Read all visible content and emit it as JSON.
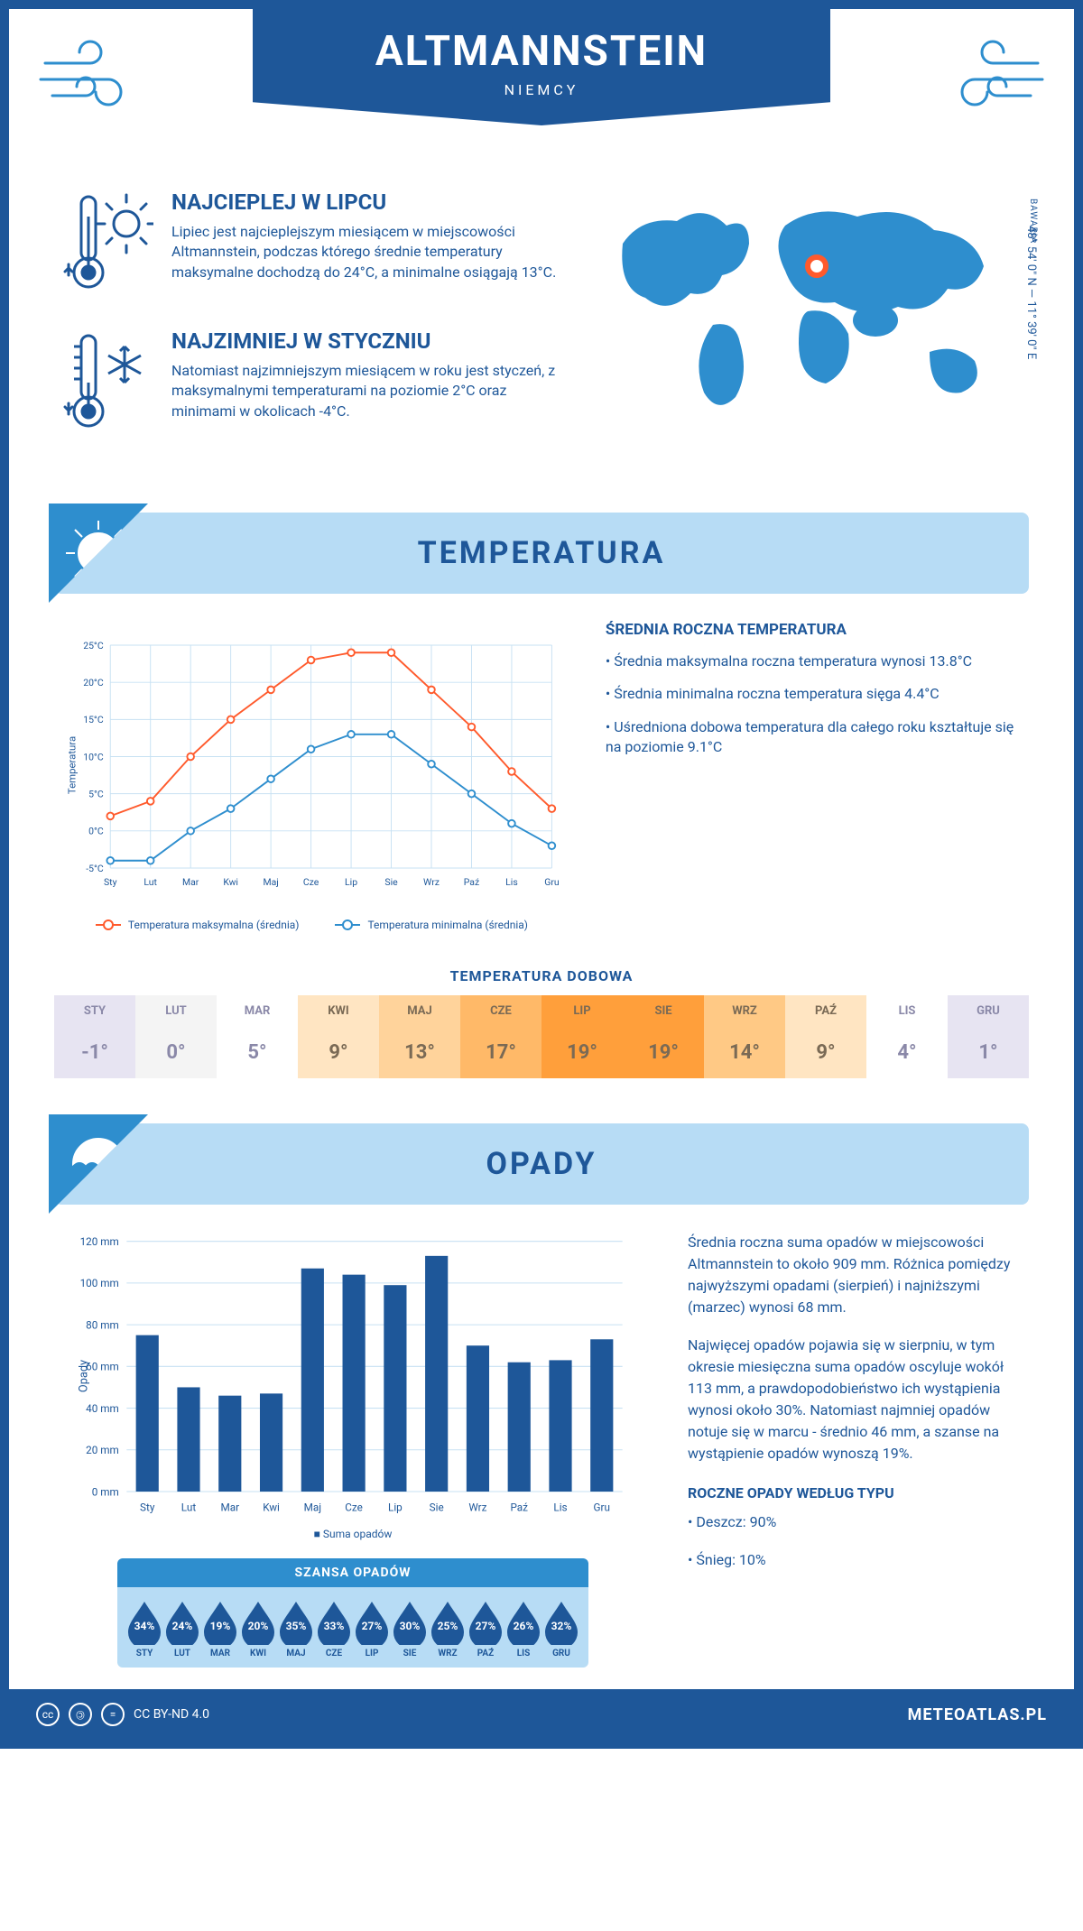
{
  "header": {
    "title": "ALTMANNSTEIN",
    "country": "NIEMCY"
  },
  "location": {
    "region": "BAWARIA",
    "coords": "48° 54' 0\" N — 11° 39' 0\" E",
    "marker_color": "#ff5a2c",
    "map_color": "#2e8ece"
  },
  "intro": {
    "hot": {
      "title": "NAJCIEPLEJ W LIPCU",
      "text": "Lipiec jest najcieplejszym miesiącem w miejscowości Altmannstein, podczas którego średnie temperatury maksymalne dochodzą do 24°C, a minimalne osiągają 13°C."
    },
    "cold": {
      "title": "NAJZIMNIEJ W STYCZNIU",
      "text": "Natomiast najzimniejszym miesiącem w roku jest styczeń, z maksymalnymi temperaturami na poziomie 2°C oraz minimami w okolicach -4°C."
    }
  },
  "colors": {
    "primary": "#1e5799",
    "light": "#b7dcf5",
    "accent_blue": "#2e8ece",
    "accent_orange": "#ff5a2c",
    "grid": "#c7e1f3"
  },
  "months_short": [
    "Sty",
    "Lut",
    "Mar",
    "Kwi",
    "Maj",
    "Cze",
    "Lip",
    "Sie",
    "Wrz",
    "Paź",
    "Lis",
    "Gru"
  ],
  "months_upper": [
    "STY",
    "LUT",
    "MAR",
    "KWI",
    "MAJ",
    "CZE",
    "LIP",
    "SIE",
    "WRZ",
    "PAŹ",
    "LIS",
    "GRU"
  ],
  "temperature": {
    "section_title": "TEMPERATURA",
    "y_label": "Temperatura",
    "ylim": [
      -5,
      25
    ],
    "ytick_step": 5,
    "y_tick_labels": [
      "-5°C",
      "0°C",
      "5°C",
      "10°C",
      "15°C",
      "20°C",
      "25°C"
    ],
    "max_series": [
      2,
      4,
      10,
      15,
      19,
      23,
      24,
      24,
      19,
      14,
      8,
      3
    ],
    "min_series": [
      -4,
      -4,
      0,
      3,
      7,
      11,
      13,
      13,
      9,
      5,
      1,
      -2
    ],
    "max_color": "#ff5a2c",
    "min_color": "#2e8ece",
    "legend_max": "Temperatura maksymalna (średnia)",
    "legend_min": "Temperatura minimalna (średnia)",
    "info_title": "ŚREDNIA ROCZNA TEMPERATURA",
    "info_1": "• Średnia maksymalna roczna temperatura wynosi 13.8°C",
    "info_2": "• Średnia minimalna roczna temperatura sięga 4.4°C",
    "info_3": "• Uśredniona dobowa temperatura dla całego roku kształtuje się na poziomie 9.1°C"
  },
  "daily": {
    "title": "TEMPERATURA DOBOWA",
    "values": [
      "-1°",
      "0°",
      "5°",
      "9°",
      "13°",
      "17°",
      "19°",
      "19°",
      "14°",
      "9°",
      "4°",
      "1°"
    ],
    "bg_colors": [
      "#e7e4f2",
      "#f4f4f4",
      "#ffffff",
      "#ffe5c2",
      "#ffd39b",
      "#ffb968",
      "#ff9f3b",
      "#ff9f3b",
      "#ffc985",
      "#ffe5c2",
      "#ffffff",
      "#e7e4f2"
    ],
    "text_color": "#7a6a55",
    "text_color_cold": "#8a88a8"
  },
  "precip": {
    "section_title": "OPADY",
    "y_label": "Opady",
    "ylim": [
      0,
      120
    ],
    "ytick_step": 20,
    "y_tick_labels": [
      "0 mm",
      "20 mm",
      "40 mm",
      "60 mm",
      "80 mm",
      "100 mm",
      "120 mm"
    ],
    "values": [
      75,
      50,
      46,
      47,
      107,
      104,
      99,
      113,
      70,
      62,
      63,
      73
    ],
    "bar_color": "#1e5799",
    "legend": "Suma opadów",
    "para1": "Średnia roczna suma opadów w miejscowości Altmannstein to około 909 mm. Różnica pomiędzy najwyższymi opadami (sierpień) i najniższymi (marzec) wynosi 68 mm.",
    "para2": "Najwięcej opadów pojawia się w sierpniu, w tym okresie miesięczna suma opadów oscyluje wokół 113 mm, a prawdopodobieństwo ich wystąpienia wynosi około 30%. Natomiast najmniej opadów notuje się w marcu - średnio 46 mm, a szanse na wystąpienie opadów wynoszą 19%.",
    "type_title": "ROCZNE OPADY WEDŁUG TYPU",
    "type_rain": "• Deszcz: 90%",
    "type_snow": "• Śnieg: 10%"
  },
  "chance": {
    "title": "SZANSA OPADÓW",
    "values": [
      "34%",
      "24%",
      "19%",
      "20%",
      "35%",
      "33%",
      "27%",
      "30%",
      "25%",
      "27%",
      "26%",
      "32%"
    ],
    "drop_color": "#1e5799"
  },
  "footer": {
    "license": "CC BY-ND 4.0",
    "site": "METEOATLAS.PL"
  }
}
